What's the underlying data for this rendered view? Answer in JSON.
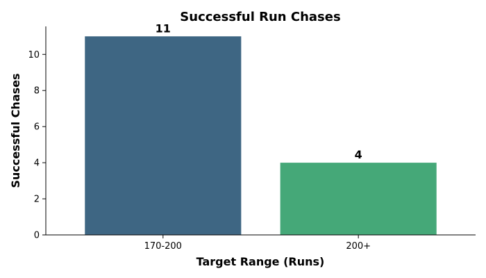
{
  "chart_data": {
    "type": "bar",
    "title": "Successful Run Chases",
    "xlabel": "Target Range (Runs)",
    "ylabel": "Successful Chases",
    "categories": [
      "170-200",
      "200+"
    ],
    "values": [
      11,
      4
    ],
    "data_labels": [
      "11",
      "4"
    ],
    "colors": [
      "#3e6683",
      "#45a878"
    ],
    "ylim": [
      0,
      11.55
    ],
    "yticks": [
      0,
      2,
      4,
      6,
      8,
      10
    ],
    "grid": false,
    "legend": "none"
  }
}
